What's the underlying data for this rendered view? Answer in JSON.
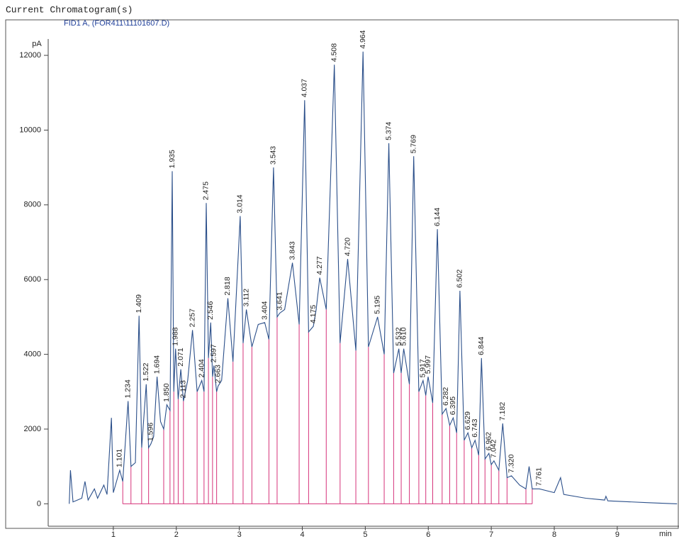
{
  "chart_data": {
    "type": "line",
    "title": "Current Chromatogram(s)",
    "subtitle": "FID1 A, (FOR411\\11101607.D)",
    "y_label": "pA",
    "x_label": "min",
    "color": "#2b4f8a",
    "peak_label_color": "#222222",
    "baseline_color": "#d6337a",
    "xlim": [
      0,
      9.98
    ],
    "ylim": [
      -600,
      12950
    ],
    "xticks": [
      1,
      2,
      3,
      4,
      5,
      6,
      7,
      8,
      9
    ],
    "yticks": [
      0,
      2000,
      4000,
      6000,
      8000,
      10000,
      12000
    ],
    "x": [
      0.3,
      0.32,
      0.36,
      0.5,
      0.55,
      0.6,
      0.7,
      0.75,
      0.85,
      0.9,
      0.97,
      1.0,
      1.101,
      1.15,
      1.234,
      1.28,
      1.35,
      1.409,
      1.45,
      1.522,
      1.56,
      1.596,
      1.64,
      1.694,
      1.75,
      1.8,
      1.85,
      1.9,
      1.935,
      1.96,
      1.988,
      2.03,
      2.071,
      2.113,
      2.18,
      2.257,
      2.33,
      2.404,
      2.44,
      2.475,
      2.51,
      2.546,
      2.575,
      2.597,
      2.64,
      2.663,
      2.72,
      2.818,
      2.9,
      3.014,
      3.06,
      3.112,
      3.2,
      3.3,
      3.404,
      3.47,
      3.543,
      3.6,
      3.641,
      3.72,
      3.843,
      3.95,
      4.037,
      4.1,
      4.175,
      4.22,
      4.277,
      4.38,
      4.508,
      4.6,
      4.72,
      4.85,
      4.964,
      5.05,
      5.195,
      5.3,
      5.374,
      5.45,
      5.532,
      5.57,
      5.61,
      5.7,
      5.769,
      5.85,
      5.917,
      5.96,
      5.997,
      6.07,
      6.144,
      6.22,
      6.282,
      6.34,
      6.395,
      6.45,
      6.502,
      6.57,
      6.629,
      6.69,
      6.743,
      6.8,
      6.844,
      6.9,
      6.962,
      7.0,
      7.042,
      7.12,
      7.182,
      7.25,
      7.32,
      7.45,
      7.55,
      7.6,
      7.65,
      7.761,
      8.0,
      8.1,
      8.15,
      8.5,
      8.8,
      8.82,
      8.85,
      9.5,
      9.95
    ],
    "values": [
      0,
      900,
      50,
      150,
      600,
      100,
      400,
      150,
      500,
      250,
      2300,
      300,
      900,
      600,
      2750,
      1000,
      1100,
      5030,
      1500,
      3200,
      1500,
      1600,
      1800,
      3400,
      2200,
      2000,
      2650,
      2500,
      8900,
      3000,
      4150,
      2800,
      3600,
      2750,
      3300,
      4650,
      3000,
      3300,
      3000,
      8050,
      3900,
      4850,
      3400,
      3700,
      3000,
      3150,
      3300,
      5500,
      3800,
      7700,
      4300,
      5200,
      4200,
      4800,
      4850,
      4400,
      9000,
      5000,
      5100,
      5200,
      6450,
      4800,
      10800,
      4600,
      4750,
      5200,
      6050,
      5200,
      11750,
      4300,
      6550,
      4100,
      12100,
      4200,
      5000,
      4000,
      9650,
      3500,
      4150,
      3500,
      4150,
      3200,
      9300,
      3000,
      3300,
      2900,
      3400,
      2700,
      7350,
      2400,
      2550,
      2100,
      2300,
      1900,
      5700,
      1700,
      1900,
      1500,
      1700,
      1300,
      3900,
      1200,
      1350,
      1050,
      1150,
      900,
      2150,
      700,
      750,
      500,
      400,
      1000,
      400,
      400,
      300,
      700,
      250,
      150,
      100,
      200,
      80,
      30,
      0
    ],
    "peaks": {
      "x": [
        1.101,
        1.234,
        1.409,
        1.522,
        1.596,
        1.694,
        1.85,
        1.935,
        1.988,
        2.071,
        2.113,
        2.257,
        2.404,
        2.475,
        2.546,
        2.597,
        2.663,
        2.818,
        3.014,
        3.112,
        3.404,
        3.543,
        3.641,
        3.843,
        4.037,
        4.175,
        4.277,
        4.508,
        4.72,
        4.964,
        5.195,
        5.374,
        5.532,
        5.61,
        5.769,
        5.917,
        5.997,
        6.144,
        6.282,
        6.395,
        6.502,
        6.629,
        6.743,
        6.844,
        6.962,
        7.042,
        7.182,
        7.32,
        7.761
      ],
      "value_labels": [
        "1.101",
        "1.234",
        "1.409",
        "1.522",
        "1.596",
        "1.694",
        "1.850",
        "1.935",
        "1.988",
        "2.071",
        "2.113",
        "2.257",
        "2.404",
        "2.475",
        "2.546",
        "2.597",
        "2.663",
        "2.818",
        "3.014",
        "3.112",
        "3.404",
        "3.543",
        "3.641",
        "3.843",
        "4.037",
        "4.175",
        "4.277",
        "4.508",
        "4.720",
        "4.964",
        "5.195",
        "5.374",
        "5.532",
        "5.610",
        "5.769",
        "5.917",
        "5.997",
        "6.144",
        "6.282",
        "6.395",
        "6.502",
        "6.629",
        "6.743",
        "6.844",
        "6.962",
        "7.042",
        "7.182",
        "7.320",
        "7.761"
      ],
      "values": [
        900,
        2750,
        5030,
        3200,
        1600,
        3400,
        2650,
        8900,
        4150,
        3600,
        2750,
        4650,
        3300,
        8050,
        4850,
        3700,
        3150,
        5500,
        7700,
        5200,
        4850,
        9000,
        5100,
        6450,
        10800,
        4750,
        6050,
        11750,
        6550,
        12100,
        5000,
        9650,
        4150,
        4150,
        9300,
        3300,
        3400,
        7350,
        2550,
        2300,
        5700,
        1900,
        1700,
        3900,
        1350,
        1150,
        2150,
        750,
        400
      ]
    }
  }
}
